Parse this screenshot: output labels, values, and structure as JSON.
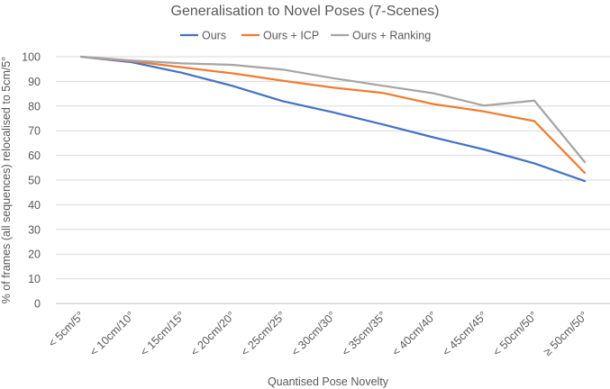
{
  "chart_data": {
    "type": "line",
    "title": "Generalisation to Novel Poses (7-Scenes)",
    "xlabel": "Quantised Pose Novelty",
    "ylabel": "% of frames (all sequences) relocalised to 5cm/5°",
    "categories": [
      "< 5cm/5°",
      "< 10cm/10°",
      "< 15cm/15°",
      "< 20cm/20°",
      "< 25cm/25°",
      "< 30cm/30°",
      "< 35cm/35°",
      "< 40cm/40°",
      "< 45cm/45°",
      "< 50cm/50°",
      "≥ 50cm/50°"
    ],
    "ylim": [
      0,
      100
    ],
    "yticks": [
      0,
      10,
      20,
      30,
      40,
      50,
      60,
      70,
      80,
      90,
      100
    ],
    "grid": true,
    "legend_position": "top",
    "series": [
      {
        "name": "Ours",
        "color": "#4472C4",
        "values": [
          100,
          97.8,
          93.5,
          88.2,
          82.0,
          77.5,
          72.5,
          67.3,
          62.4,
          56.8,
          49.6
        ]
      },
      {
        "name": "Ours + ICP",
        "color": "#ED7D31",
        "values": [
          100,
          98.2,
          95.7,
          93.3,
          90.3,
          87.5,
          85.3,
          80.8,
          77.8,
          73.9,
          52.9
        ]
      },
      {
        "name": "Ours + Ranking",
        "color": "#A5A5A5",
        "values": [
          100,
          98.5,
          97.3,
          96.7,
          94.8,
          91.3,
          88.2,
          85.2,
          80.2,
          82.2,
          57.3
        ]
      }
    ]
  }
}
